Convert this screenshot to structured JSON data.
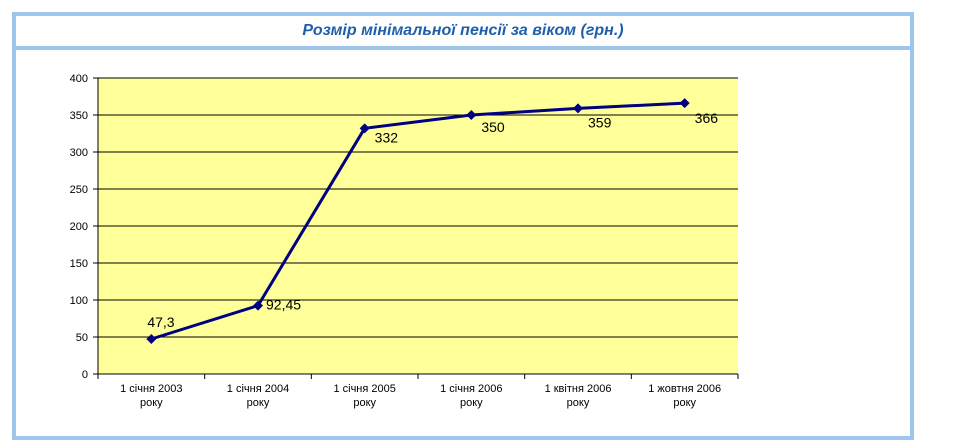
{
  "chart_data": {
    "type": "line",
    "title": "Розмір мінімальної пенсії за віком (грн.)",
    "xlabel": "",
    "ylabel": "",
    "categories": [
      [
        "1 січня 2003",
        "року"
      ],
      [
        "1 січня 2004",
        "року"
      ],
      [
        "1 січня 2005",
        "року"
      ],
      [
        "1 січня 2006",
        "року"
      ],
      [
        "1 квітня 2006",
        "року"
      ],
      [
        "1 жовтня 2006",
        "року"
      ]
    ],
    "values": [
      47.3,
      92.45,
      332,
      350,
      359,
      366
    ],
    "data_labels": [
      "47,3",
      "92,45",
      "332",
      "350",
      "359",
      "366"
    ],
    "ylim": [
      0,
      400
    ],
    "yticks": [
      0,
      50,
      100,
      150,
      200,
      250,
      300,
      350,
      400
    ],
    "grid": true,
    "legend": "none",
    "colors": {
      "plot_background": "#ffff99",
      "line": "#000080",
      "frame_border": "#9fc6ea",
      "title": "#1f5faa"
    },
    "marker": "diamond-icon"
  }
}
